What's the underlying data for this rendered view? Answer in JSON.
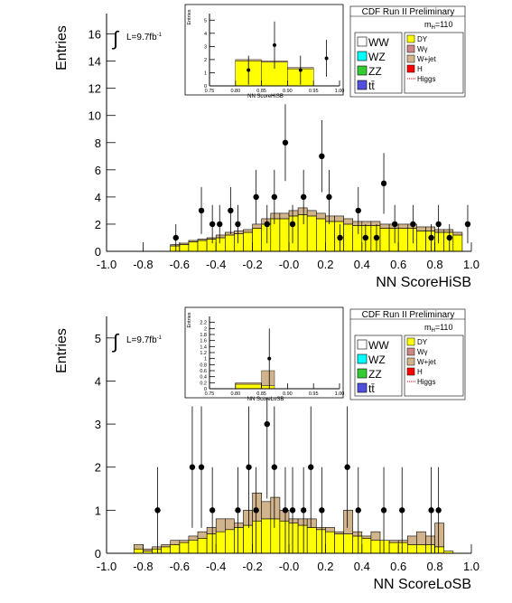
{
  "chart_data": [
    {
      "type": "stacked_histogram",
      "x_label": "NN ScoreHiSB",
      "y_label": "Entries",
      "header": "CDF Run II Preliminary",
      "mass": "m",
      "mass_sub": "H",
      "mass_value": "=110",
      "integral": "∫",
      "lumi": "L=9.7fb",
      "lumi_sup": "-1",
      "legend": true,
      "xlim": [
        -1,
        1
      ],
      "xticks": [
        {
          "value": -1,
          "label": "-1.0"
        },
        -0.8,
        -0.6,
        -0.4,
        -0.2,
        {
          "value": 0,
          "label": "-0.0"
        },
        0.2,
        0.4,
        0.6,
        0.8,
        {
          "value": 1,
          "label": "1.0"
        }
      ],
      "ylim": [
        0,
        17.5
      ],
      "yticks": [
        0,
        2,
        4,
        6,
        8,
        10,
        12,
        14,
        16
      ],
      "bins": [
        -1,
        -0.95,
        -0.9,
        -0.85,
        -0.8,
        -0.75,
        -0.7,
        -0.65,
        -0.6,
        -0.55,
        -0.5,
        -0.45,
        -0.4,
        -0.35,
        -0.3,
        -0.25,
        -0.2,
        -0.15,
        -0.1,
        -0.05,
        0,
        0.05,
        0.1,
        0.15,
        0.2,
        0.25,
        0.3,
        0.35,
        0.4,
        0.45,
        0.5,
        0.55,
        0.6,
        0.65,
        0.7,
        0.75,
        0.8,
        0.85,
        0.9,
        0.95,
        1
      ],
      "series": [
        {
          "name": "WW",
          "color": "#ffffff"
        },
        {
          "name": "WZ",
          "color": "#00ffff"
        },
        {
          "name": "ZZ",
          "color": "#33cc33"
        },
        {
          "name": "tt̄",
          "color": "#5050dd"
        },
        {
          "name": "DY",
          "color": "#ffff00",
          "values": [
            0,
            0,
            0,
            0,
            0,
            0,
            0,
            0.4,
            0.5,
            0.7,
            0.8,
            0.9,
            1.0,
            1.2,
            1.3,
            1.4,
            1.7,
            2.0,
            2.4,
            2.4,
            2.6,
            2.7,
            2.6,
            2.4,
            2.2,
            2.2,
            2.0,
            1.9,
            1.9,
            1.9,
            1.7,
            1.7,
            1.7,
            1.7,
            1.5,
            1.5,
            1.4,
            1.4,
            1.2,
            0
          ]
        },
        {
          "name": "Wγ",
          "color": "#cc8888"
        },
        {
          "name": "W+jet",
          "color": "#d2b48c",
          "values": [
            0,
            0,
            0,
            0,
            0,
            0,
            0,
            0.1,
            0.1,
            0.1,
            0.1,
            0.1,
            0.2,
            0.2,
            0.2,
            0.2,
            0.3,
            0.4,
            0.4,
            0.4,
            0.4,
            0.5,
            0.4,
            0.4,
            0.4,
            0.4,
            0.4,
            0.3,
            0.3,
            0.3,
            0.3,
            0.3,
            0.3,
            0.3,
            0.3,
            0.3,
            0.2,
            0.2,
            0.2,
            0
          ]
        },
        {
          "name": "H",
          "color": "#ff0000"
        },
        {
          "name": "Higgs",
          "color": "#ff0000"
        }
      ],
      "points": {
        "x": [
          -0.62,
          -0.48,
          -0.42,
          -0.38,
          -0.32,
          -0.28,
          -0.18,
          -0.12,
          -0.08,
          -0.02,
          0.02,
          0.08,
          0.18,
          0.22,
          0.28,
          0.38,
          0.42,
          0.48,
          0.52,
          0.58,
          0.68,
          0.78,
          0.82,
          0.88,
          0.98
        ],
        "y": [
          1,
          3,
          2,
          2,
          3,
          2,
          4,
          2,
          4,
          8,
          2,
          4,
          7,
          4,
          1,
          3,
          1,
          1,
          5,
          2,
          2,
          1,
          2,
          1,
          2
        ],
        "errors": [
          1,
          1.73,
          1.41,
          1.41,
          1.73,
          1.41,
          2,
          1.41,
          2,
          2.83,
          1.41,
          2,
          2.65,
          2,
          1,
          1.73,
          1,
          1,
          2.24,
          1.41,
          1.41,
          1,
          1.41,
          1,
          1.41
        ]
      }
    },
    {
      "type": "stacked_histogram",
      "x_label": "NN ScoreHiSB",
      "y_label": "Entries",
      "xlim": [
        0.75,
        1
      ],
      "xticks": [
        0.75,
        {
          "value": 0.8,
          "label": "0.80"
        },
        0.85,
        {
          "value": 0.9,
          "label": "0.90"
        },
        0.95,
        {
          "value": 1,
          "label": "1.00"
        }
      ],
      "ylim": [
        0,
        5.5
      ],
      "yticks": [
        0,
        1,
        2,
        3,
        4,
        5
      ],
      "bins": [
        0.75,
        0.8,
        0.85,
        0.9,
        0.95,
        1
      ],
      "series": [
        {
          "name": "DY",
          "color": "#ffff00",
          "values": [
            0,
            1.9,
            1.8,
            1.3,
            0
          ]
        },
        {
          "name": "W+jet",
          "color": "#d2b48c",
          "values": [
            0,
            0.1,
            0.1,
            0.1,
            0
          ]
        }
      ],
      "points": {
        "x": [
          0.825,
          0.875,
          0.925,
          0.975
        ],
        "y": [
          1.2,
          3.1,
          1.2,
          2.1
        ],
        "errors": [
          1.1,
          1.8,
          1.1,
          1.4
        ]
      }
    },
    {
      "type": "stacked_histogram",
      "x_label": "NN ScoreLoSB",
      "y_label": "Entries",
      "header": "CDF Run II Preliminary",
      "mass": "m",
      "mass_sub": "H",
      "mass_value": "=110",
      "integral": "∫",
      "lumi": "L=9.7fb",
      "lumi_sup": "-1",
      "legend": true,
      "xlim": [
        -1,
        1
      ],
      "xticks": [
        {
          "value": -1,
          "label": "-1.0"
        },
        -0.8,
        -0.6,
        -0.4,
        -0.2,
        {
          "value": 0,
          "label": "-0.0"
        },
        0.2,
        0.4,
        0.6,
        0.8,
        {
          "value": 1,
          "label": "1.0"
        }
      ],
      "ylim": [
        0,
        5.5
      ],
      "yticks": [
        0,
        1,
        2,
        3,
        4,
        5
      ],
      "bins": [
        -1,
        -0.95,
        -0.9,
        -0.85,
        -0.8,
        -0.75,
        -0.7,
        -0.65,
        -0.6,
        -0.55,
        -0.5,
        -0.45,
        -0.4,
        -0.35,
        -0.3,
        -0.25,
        -0.2,
        -0.15,
        -0.1,
        -0.05,
        0,
        0.05,
        0.1,
        0.15,
        0.2,
        0.25,
        0.3,
        0.35,
        0.4,
        0.45,
        0.5,
        0.55,
        0.6,
        0.65,
        0.7,
        0.75,
        0.8,
        0.85,
        0.9,
        0.95,
        1
      ],
      "series": [
        {
          "name": "WW",
          "color": "#ffffff"
        },
        {
          "name": "WZ",
          "color": "#00ffff"
        },
        {
          "name": "ZZ",
          "color": "#33cc33"
        },
        {
          "name": "tt̄",
          "color": "#5050dd"
        },
        {
          "name": "DY",
          "color": "#ffff00",
          "values": [
            0,
            0,
            0,
            0.1,
            0.05,
            0.1,
            0.15,
            0.2,
            0.25,
            0.3,
            0.35,
            0.45,
            0.5,
            0.55,
            0.6,
            0.65,
            0.75,
            0.8,
            0.8,
            0.75,
            0.7,
            0.65,
            0.6,
            0.55,
            0.5,
            0.45,
            0.45,
            0.4,
            0.35,
            0.3,
            0.3,
            0.25,
            0.25,
            0.2,
            0.2,
            0.2,
            0.15,
            0.05,
            0,
            0
          ]
        },
        {
          "name": "Wγ",
          "color": "#cc8888"
        },
        {
          "name": "W+jet",
          "color": "#d2b48c",
          "values": [
            0,
            0,
            0,
            0.1,
            0.05,
            0.05,
            0.05,
            0.1,
            0.05,
            0.1,
            0.15,
            0.15,
            0.3,
            0.25,
            0.1,
            0.35,
            0.65,
            0.4,
            0.5,
            0.25,
            0.1,
            0.15,
            0.2,
            0.05,
            0.1,
            0.05,
            0.55,
            0.1,
            0.05,
            0.2,
            0,
            0.05,
            0.05,
            0.2,
            0.3,
            0.2,
            0.55,
            0,
            0,
            0
          ]
        },
        {
          "name": "H",
          "color": "#ff0000"
        },
        {
          "name": "Higgs",
          "color": "#ff0000"
        }
      ],
      "points": {
        "x": [
          -0.72,
          -0.53,
          -0.48,
          -0.42,
          -0.28,
          -0.22,
          -0.18,
          -0.12,
          -0.08,
          -0.02,
          0.02,
          0.08,
          0.12,
          0.18,
          0.32,
          0.38,
          0.52,
          0.62,
          0.78,
          0.82
        ],
        "y": [
          1,
          2,
          2,
          1,
          1,
          2,
          1,
          3,
          2,
          1,
          1,
          1,
          2,
          1,
          2,
          1,
          1,
          1,
          1,
          1
        ],
        "errors": [
          1,
          1.41,
          1.41,
          1,
          1,
          1.41,
          1,
          1.73,
          1.41,
          1,
          1,
          1,
          1.41,
          1,
          1.41,
          1,
          1,
          1,
          1,
          1
        ]
      }
    },
    {
      "type": "stacked_histogram",
      "x_label": "NN ScoreLoSB",
      "y_label": "Entries",
      "xlim": [
        0.75,
        1
      ],
      "xticks": [
        0.75,
        {
          "value": 0.8,
          "label": "0.80"
        },
        0.85,
        {
          "value": 0.9,
          "label": "0.90"
        },
        0.95,
        {
          "value": 1,
          "label": "1.00"
        }
      ],
      "ylim": [
        0,
        2.4
      ],
      "yticks": [
        0,
        0.2,
        0.4,
        0.6,
        0.8,
        1,
        1.2,
        1.4,
        1.6,
        1.8,
        2,
        2.2
      ],
      "bins": [
        0.75,
        0.8,
        0.85,
        0.875,
        1
      ],
      "series": [
        {
          "name": "DY",
          "color": "#ffff00",
          "values": [
            0,
            0.15,
            0.1,
            0
          ]
        },
        {
          "name": "W+jet",
          "color": "#d2b48c",
          "values": [
            0,
            0.05,
            0.5,
            0
          ]
        }
      ],
      "points": {
        "x": [
          0.865
        ],
        "y": [
          1.0
        ],
        "errors": [
          1.0
        ]
      }
    }
  ]
}
